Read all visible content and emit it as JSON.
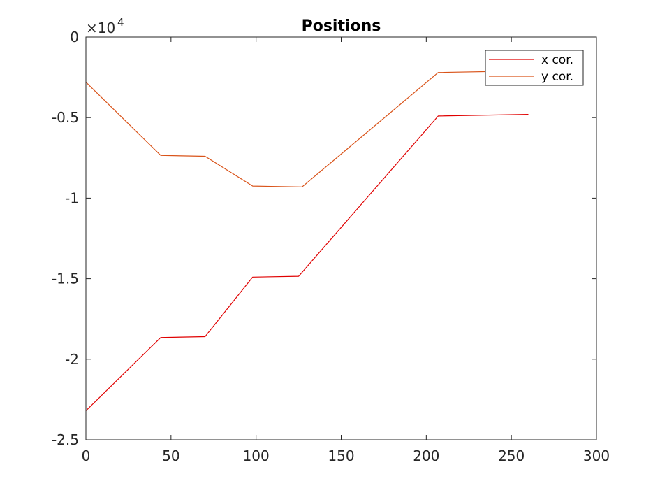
{
  "chart_data": {
    "type": "line",
    "title": "Positions",
    "xlabel": "",
    "ylabel": "",
    "xlim": [
      0,
      300
    ],
    "ylim": [
      -25000,
      0
    ],
    "xticks": [
      0,
      50,
      100,
      150,
      200,
      250,
      300
    ],
    "xtick_labels": [
      "0",
      "50",
      "100",
      "150",
      "200",
      "250",
      "300"
    ],
    "yticks": [
      0,
      -5000,
      -10000,
      -15000,
      -20000,
      -25000
    ],
    "ytick_labels": [
      "0",
      "-0.5",
      "-1",
      "-1.5",
      "-2",
      "-2.5"
    ],
    "y_exponent": {
      "base": "×10",
      "power": "4"
    },
    "grid": false,
    "legend_position": "top-right",
    "series": [
      {
        "name": "x cor.",
        "color": "#e00000",
        "points": [
          [
            0,
            -23200
          ],
          [
            44,
            -18650
          ],
          [
            70,
            -18600
          ],
          [
            98,
            -14900
          ],
          [
            125,
            -14850
          ],
          [
            207,
            -4900
          ],
          [
            260,
            -4800
          ]
        ]
      },
      {
        "name": "y cor.",
        "color": "#d95319",
        "points": [
          [
            0,
            -2800
          ],
          [
            44,
            -7350
          ],
          [
            70,
            -7400
          ],
          [
            98,
            -9250
          ],
          [
            127,
            -9300
          ],
          [
            207,
            -2200
          ],
          [
            260,
            -2100
          ]
        ]
      }
    ]
  }
}
